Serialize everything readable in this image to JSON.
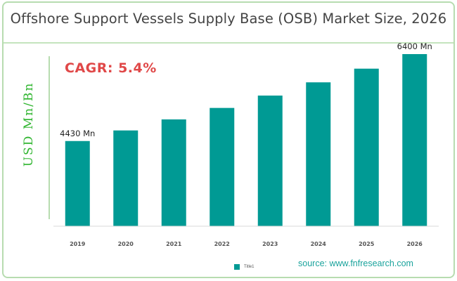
{
  "title": "Offshore Support Vessels Supply Base (OSB) Market Size, 2026",
  "cagr": "CAGR: 5.4%",
  "source": "source: www.fnfresearch.com",
  "colors": {
    "bar": "#009a94",
    "axis": "#b7dcb0",
    "title": "#444444",
    "cagr": "#e04848",
    "ylabel": "#2fb52f"
  },
  "chart_data": {
    "type": "bar",
    "categories": [
      "2019",
      "2020",
      "2021",
      "2022",
      "2023",
      "2024",
      "2025",
      "2026"
    ],
    "series": [
      {
        "name": "Title1",
        "values": [
          4430,
          4670,
          4920,
          5180,
          5460,
          5760,
          6070,
          6400
        ]
      }
    ],
    "data_labels": [
      {
        "category": "2019",
        "text": "4430 Mn"
      },
      {
        "category": "2026",
        "text": "6400 Mn"
      }
    ],
    "ylabel": "USD Mn/Bn",
    "xlabel": "",
    "ylim": [
      2500,
      6400
    ],
    "legend": "bottom",
    "grid": false
  }
}
